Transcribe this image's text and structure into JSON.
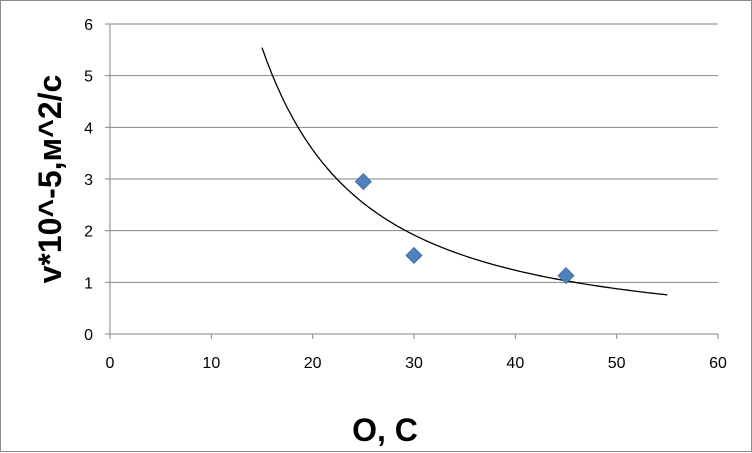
{
  "chart_data": {
    "type": "scatter",
    "title": "",
    "xlabel": "O, C",
    "ylabel": "v*10^-5,м^2/c",
    "xlim": [
      0,
      60
    ],
    "ylim": [
      0,
      6
    ],
    "x_ticks": [
      0,
      10,
      20,
      30,
      40,
      50,
      60
    ],
    "y_ticks": [
      0,
      1,
      2,
      3,
      4,
      5,
      6
    ],
    "grid": "horizontal",
    "legend": "none",
    "series": [
      {
        "marker": "diamond",
        "color": "#4f81bd",
        "points": [
          {
            "x": 25,
            "y": 2.95
          },
          {
            "x": 30,
            "y": 1.52
          },
          {
            "x": 45,
            "y": 1.13
          }
        ]
      }
    ],
    "trendline": {
      "type": "power",
      "color": "#000000",
      "x_range": [
        15,
        55
      ],
      "points": [
        {
          "x": 15,
          "y": 5.4
        },
        {
          "x": 20,
          "y": 3.67
        },
        {
          "x": 25,
          "y": 2.6
        },
        {
          "x": 30,
          "y": 1.9
        },
        {
          "x": 35,
          "y": 1.5
        },
        {
          "x": 40,
          "y": 1.22
        },
        {
          "x": 45,
          "y": 1.02
        },
        {
          "x": 50,
          "y": 0.87
        },
        {
          "x": 55,
          "y": 0.77
        }
      ]
    }
  }
}
